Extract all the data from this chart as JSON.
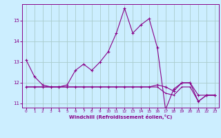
{
  "xlabel": "Windchill (Refroidissement éolien,°C)",
  "background_color": "#cceeff",
  "grid_color": "#aacccc",
  "line_color": "#880088",
  "x": [
    0,
    1,
    2,
    3,
    4,
    5,
    6,
    7,
    8,
    9,
    10,
    11,
    12,
    13,
    14,
    15,
    16,
    17,
    18,
    19,
    20,
    21,
    22,
    23
  ],
  "series1": [
    13.1,
    12.3,
    11.9,
    11.8,
    11.8,
    11.9,
    12.6,
    12.9,
    12.6,
    13.0,
    13.5,
    14.4,
    15.6,
    14.4,
    14.8,
    15.1,
    13.7,
    10.7,
    11.7,
    12.0,
    12.0,
    11.1,
    11.4,
    11.4
  ],
  "series2": [
    11.8,
    11.8,
    11.8,
    11.8,
    11.8,
    11.8,
    11.8,
    11.8,
    11.8,
    11.8,
    11.8,
    11.8,
    11.8,
    11.8,
    11.8,
    11.8,
    11.9,
    11.8,
    11.6,
    12.0,
    12.0,
    11.4,
    11.4,
    11.4
  ],
  "series3": [
    11.8,
    11.8,
    11.8,
    11.8,
    11.8,
    11.8,
    11.8,
    11.8,
    11.8,
    11.8,
    11.8,
    11.8,
    11.8,
    11.8,
    11.8,
    11.8,
    11.8,
    11.5,
    11.4,
    11.8,
    11.8,
    11.1,
    11.4,
    11.4
  ],
  "ylim": [
    10.8,
    15.8
  ],
  "xlim": [
    -0.5,
    23.5
  ],
  "yticks": [
    11,
    12,
    13,
    14,
    15
  ],
  "xticks": [
    0,
    1,
    2,
    3,
    4,
    5,
    6,
    7,
    8,
    9,
    10,
    11,
    12,
    13,
    14,
    15,
    16,
    17,
    18,
    19,
    20,
    21,
    22,
    23
  ]
}
